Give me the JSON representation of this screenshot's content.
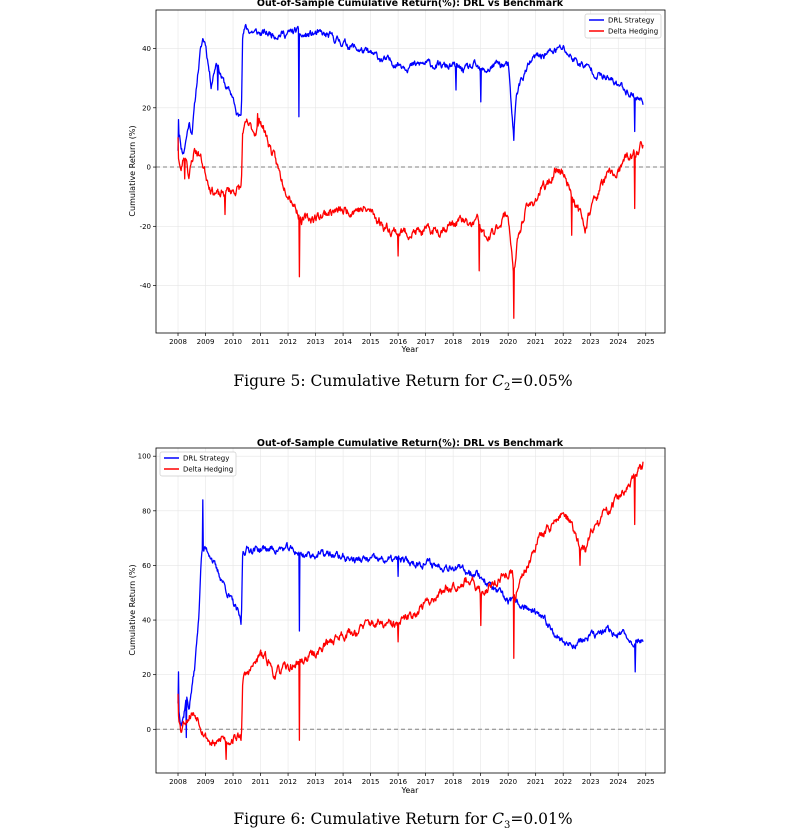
{
  "figures": [
    {
      "caption": {
        "prefix": "Figure 5: Cumulative Return for ",
        "var": "C",
        "sub": "2",
        "suffix": "=0.05%"
      },
      "chart_data": {
        "type": "line",
        "title": "Out-of-Sample Cumulative Return(%): DRL vs Benchmark",
        "xlabel": "Year",
        "ylabel": "Cumulative Return (%)",
        "xlim": [
          2007.2,
          2025.7
        ],
        "ylim": [
          -56,
          53
        ],
        "xticks": [
          "2008",
          "2009",
          "2010",
          "2011",
          "2012",
          "2013",
          "2014",
          "2015",
          "2016",
          "2017",
          "2018",
          "2019",
          "2020",
          "2021",
          "2022",
          "2023",
          "2024",
          "2025"
        ],
        "yticks": [
          -40,
          -20,
          0,
          20,
          40
        ],
        "grid": true,
        "legend_position": "top-right",
        "reference_line": {
          "y": 0,
          "style": "dashed",
          "color": "#808080"
        },
        "series": [
          {
            "name": "DRL Strategy",
            "color": "#0000ff",
            "noise": 1.2,
            "seed": 11,
            "x": [
              2008.0,
              2008.05,
              2008.1,
              2008.2,
              2008.3,
              2008.4,
              2008.5,
              2008.6,
              2008.7,
              2008.8,
              2008.9,
              2009.0,
              2009.2,
              2009.4,
              2009.6,
              2009.8,
              2010.0,
              2010.1,
              2010.2,
              2010.3,
              2010.35,
              2010.45,
              2010.6,
              2011.0,
              2011.5,
              2012.0,
              2012.3,
              2012.5,
              2013.0,
              2013.5,
              2014.0,
              2014.5,
              2015.0,
              2015.3,
              2015.5,
              2016.0,
              2016.5,
              2017.0,
              2017.5,
              2018.0,
              2018.3,
              2018.5,
              2018.8,
              2019.0,
              2019.3,
              2019.6,
              2020.0,
              2020.2,
              2020.3,
              2020.5,
              2020.8,
              2021.0,
              2021.3,
              2021.6,
              2021.9,
              2022.0,
              2022.3,
              2022.6,
              2023.0,
              2023.5,
              2024.0,
              2024.3,
              2024.6,
              2024.9
            ],
            "y": [
              6,
              13,
              7,
              5,
              10,
              15,
              12,
              20,
              30,
              38,
              43,
              42,
              28,
              36,
              30,
              26,
              24,
              18,
              17,
              20,
              45,
              47,
              46,
              45,
              45,
              45,
              46,
              44,
              45,
              44,
              42,
              40,
              38,
              37,
              36,
              35,
              34,
              35,
              34,
              34,
              33,
              33,
              34,
              32,
              33,
              35,
              34,
              10,
              25,
              30,
              35,
              37,
              38,
              39,
              40,
              40,
              37,
              35,
              33,
              30,
              28,
              26,
              24,
              22
            ],
            "spikes": [
              {
                "x": 2008.02,
                "y": 16
              },
              {
                "x": 2009.45,
                "y": 26
              },
              {
                "x": 2012.4,
                "y": 17
              },
              {
                "x": 2018.1,
                "y": 26
              },
              {
                "x": 2019.0,
                "y": 22
              },
              {
                "x": 2020.21,
                "y": 9
              },
              {
                "x": 2024.6,
                "y": 12
              }
            ]
          },
          {
            "name": "Delta Hedging",
            "color": "#ff0000",
            "noise": 1.5,
            "seed": 23,
            "x": [
              2008.0,
              2008.1,
              2008.2,
              2008.3,
              2008.4,
              2008.6,
              2008.8,
              2009.0,
              2009.2,
              2009.5,
              2009.8,
              2010.0,
              2010.3,
              2010.35,
              2010.5,
              2010.8,
              2011.0,
              2011.3,
              2011.5,
              2011.8,
              2012.0,
              2012.3,
              2012.5,
              2013.0,
              2013.5,
              2014.0,
              2014.5,
              2015.0,
              2015.5,
              2016.0,
              2016.5,
              2017.0,
              2017.5,
              2018.0,
              2018.3,
              2018.6,
              2018.9,
              2019.2,
              2019.5,
              2019.8,
              2020.0,
              2020.15,
              2020.2,
              2020.35,
              2020.6,
              2020.9,
              2021.2,
              2021.5,
              2021.8,
              2022.0,
              2022.3,
              2022.5,
              2022.8,
              2023.0,
              2023.3,
              2023.6,
              2024.0,
              2024.3,
              2024.6,
              2024.9
            ],
            "y": [
              5,
              -2,
              3,
              4,
              -3,
              6,
              4,
              -2,
              -7,
              -10,
              -8,
              -8,
              -7,
              12,
              14,
              12,
              16,
              8,
              3,
              -5,
              -8,
              -14,
              -18,
              -17,
              -15,
              -15,
              -14,
              -15,
              -20,
              -22,
              -22,
              -22,
              -21,
              -19,
              -18,
              -20,
              -18,
              -25,
              -22,
              -17,
              -16,
              -30,
              -38,
              -25,
              -15,
              -12,
              -8,
              -5,
              0,
              -2,
              -8,
              -14,
              -20,
              -14,
              -8,
              -3,
              -2,
              3,
              4,
              8
            ],
            "spikes": [
              {
                "x": 2008.0,
                "y": 10
              },
              {
                "x": 2008.25,
                "y": -4
              },
              {
                "x": 2009.7,
                "y": -16
              },
              {
                "x": 2010.9,
                "y": 18
              },
              {
                "x": 2012.41,
                "y": -37
              },
              {
                "x": 2016.0,
                "y": -30
              },
              {
                "x": 2018.95,
                "y": -35
              },
              {
                "x": 2020.2,
                "y": -51
              },
              {
                "x": 2022.3,
                "y": -23
              },
              {
                "x": 2024.6,
                "y": -14
              }
            ]
          }
        ]
      }
    },
    {
      "caption": {
        "prefix": "Figure 6: Cumulative Return for ",
        "var": "C",
        "sub": "3",
        "suffix": "=0.01%"
      },
      "chart_data": {
        "type": "line",
        "title": "Out-of-Sample Cumulative Return(%): DRL vs Benchmark",
        "xlabel": "Year",
        "ylabel": "Cumulative Return (%)",
        "xlim": [
          2007.2,
          2025.7
        ],
        "ylim": [
          -16,
          103
        ],
        "xticks": [
          "2008",
          "2009",
          "2010",
          "2011",
          "2012",
          "2013",
          "2014",
          "2015",
          "2016",
          "2017",
          "2018",
          "2019",
          "2020",
          "2021",
          "2022",
          "2023",
          "2024",
          "2025"
        ],
        "yticks": [
          0,
          20,
          40,
          60,
          80,
          100
        ],
        "grid": true,
        "legend_position": "top-left",
        "reference_line": {
          "y": 0,
          "style": "dashed",
          "color": "#808080"
        },
        "series": [
          {
            "name": "DRL Strategy",
            "color": "#0000ff",
            "noise": 1.3,
            "seed": 37,
            "x": [
              2008.0,
              2008.1,
              2008.2,
              2008.3,
              2008.4,
              2008.5,
              2008.6,
              2008.75,
              2008.85,
              2009.0,
              2009.2,
              2009.4,
              2009.6,
              2009.8,
              2010.0,
              2010.2,
              2010.3,
              2010.35,
              2010.5,
              2011.0,
              2011.5,
              2012.0,
              2012.3,
              2012.5,
              2013.0,
              2013.5,
              2014.0,
              2014.5,
              2015.0,
              2015.5,
              2016.0,
              2016.5,
              2017.0,
              2017.5,
              2018.0,
              2018.3,
              2018.6,
              2018.9,
              2019.2,
              2019.6,
              2020.0,
              2020.3,
              2020.6,
              2021.0,
              2021.5,
              2022.0,
              2022.3,
              2022.6,
              2023.0,
              2023.3,
              2023.6,
              2024.0,
              2024.3,
              2024.6,
              2024.9
            ],
            "y": [
              10,
              3,
              5,
              12,
              8,
              15,
              22,
              40,
              65,
              66,
              64,
              58,
              55,
              50,
              46,
              42,
              38,
              65,
              66,
              66,
              66,
              66,
              65,
              64,
              64,
              64,
              63,
              62,
              62,
              62,
              62,
              61,
              61,
              60,
              60,
              58,
              58,
              57,
              54,
              50,
              47,
              46,
              45,
              42,
              38,
              32,
              31,
              32,
              34,
              35,
              36,
              35,
              34,
              32,
              33
            ],
            "spikes": [
              {
                "x": 2008.02,
                "y": 21
              },
              {
                "x": 2008.3,
                "y": -3
              },
              {
                "x": 2008.9,
                "y": 84
              },
              {
                "x": 2012.42,
                "y": 36
              },
              {
                "x": 2016.0,
                "y": 56
              },
              {
                "x": 2024.62,
                "y": 21
              }
            ]
          },
          {
            "name": "Delta Hedging",
            "color": "#ff0000",
            "noise": 1.6,
            "seed": 53,
            "x": [
              2008.0,
              2008.1,
              2008.2,
              2008.3,
              2008.5,
              2008.7,
              2009.0,
              2009.2,
              2009.4,
              2009.6,
              2009.8,
              2010.0,
              2010.2,
              2010.3,
              2010.35,
              2010.5,
              2010.8,
              2011.0,
              2011.3,
              2011.5,
              2011.8,
              2012.0,
              2012.3,
              2012.5,
              2013.0,
              2013.5,
              2014.0,
              2014.5,
              2015.0,
              2015.5,
              2016.0,
              2016.5,
              2017.0,
              2017.5,
              2018.0,
              2018.5,
              2019.0,
              2019.5,
              2020.0,
              2020.15,
              2020.25,
              2020.4,
              2020.7,
              2021.0,
              2021.3,
              2021.6,
              2021.9,
              2022.0,
              2022.3,
              2022.6,
              2022.8,
              2023.0,
              2023.3,
              2023.6,
              2024.0,
              2024.3,
              2024.6,
              2024.9
            ],
            "y": [
              8,
              0,
              3,
              4,
              6,
              5,
              -2,
              -5,
              -6,
              -3,
              -4,
              -3,
              -3,
              -3,
              18,
              20,
              24,
              27,
              25,
              20,
              22,
              22,
              24,
              25,
              28,
              32,
              35,
              36,
              39,
              38,
              38,
              42,
              46,
              50,
              53,
              55,
              50,
              54,
              57,
              58,
              45,
              55,
              60,
              68,
              72,
              75,
              78,
              80,
              75,
              67,
              65,
              72,
              76,
              80,
              85,
              88,
              92,
              96
            ],
            "spikes": [
              {
                "x": 2008.0,
                "y": 13
              },
              {
                "x": 2009.75,
                "y": -11
              },
              {
                "x": 2011.0,
                "y": 29
              },
              {
                "x": 2012.41,
                "y": -4
              },
              {
                "x": 2016.0,
                "y": 32
              },
              {
                "x": 2019.0,
                "y": 38
              },
              {
                "x": 2020.2,
                "y": 26
              },
              {
                "x": 2022.6,
                "y": 60
              },
              {
                "x": 2024.6,
                "y": 75
              },
              {
                "x": 2024.9,
                "y": 98
              }
            ]
          }
        ]
      }
    }
  ]
}
